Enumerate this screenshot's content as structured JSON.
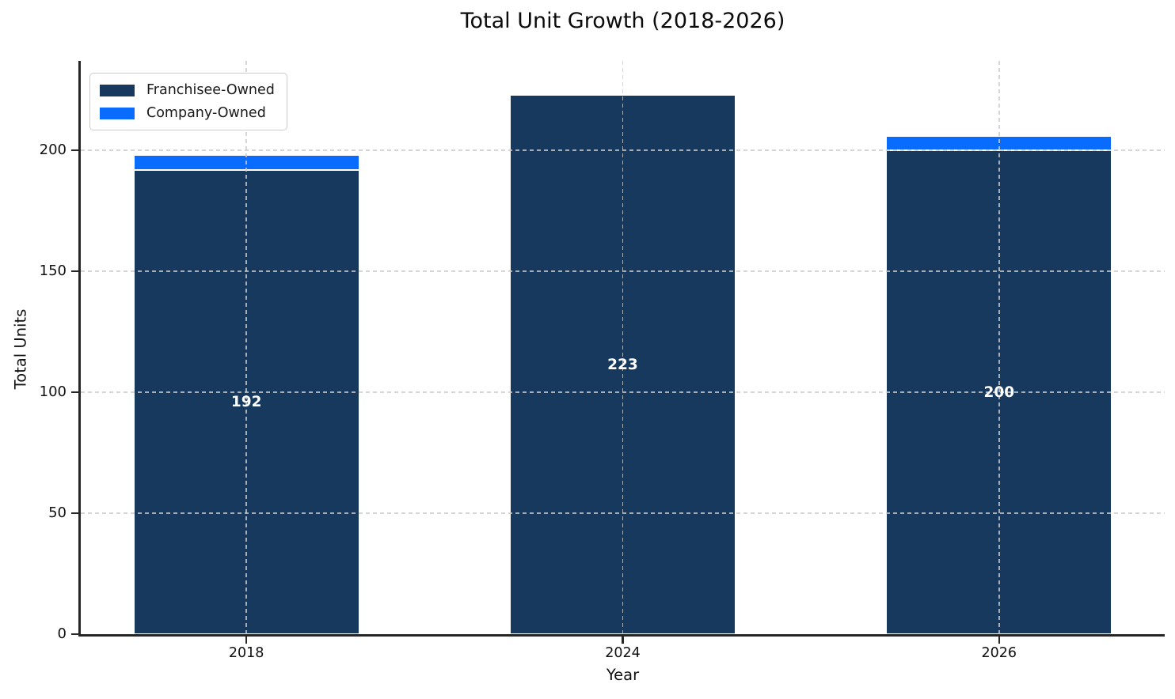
{
  "chart_data": {
    "type": "bar",
    "stacked": true,
    "title": "Total Unit Growth (2018-2026)",
    "xlabel": "Year",
    "ylabel": "Total Units",
    "categories": [
      "2018",
      "2024",
      "2026"
    ],
    "series": [
      {
        "name": "Franchisee-Owned",
        "color": "#17395E",
        "values": [
          192,
          223,
          200
        ]
      },
      {
        "name": "Company-Owned",
        "color": "#0A6BFF",
        "values": [
          6,
          0,
          6
        ]
      }
    ],
    "bar_value_labels": [
      "192",
      "223",
      "200"
    ],
    "bar_value_label_color": "#ffffff",
    "yticks": [
      "0",
      "50",
      "100",
      "150",
      "200"
    ],
    "ytick_values": [
      0,
      50,
      100,
      150,
      200
    ],
    "ylim": [
      0,
      237
    ],
    "grid": "dashed",
    "legend_position": "upper-left",
    "colors": {
      "franchisee": "#17395E",
      "company": "#0A6BFF",
      "spine": "#262626",
      "gridline": "#cbcbcb",
      "background": "#ffffff"
    }
  }
}
